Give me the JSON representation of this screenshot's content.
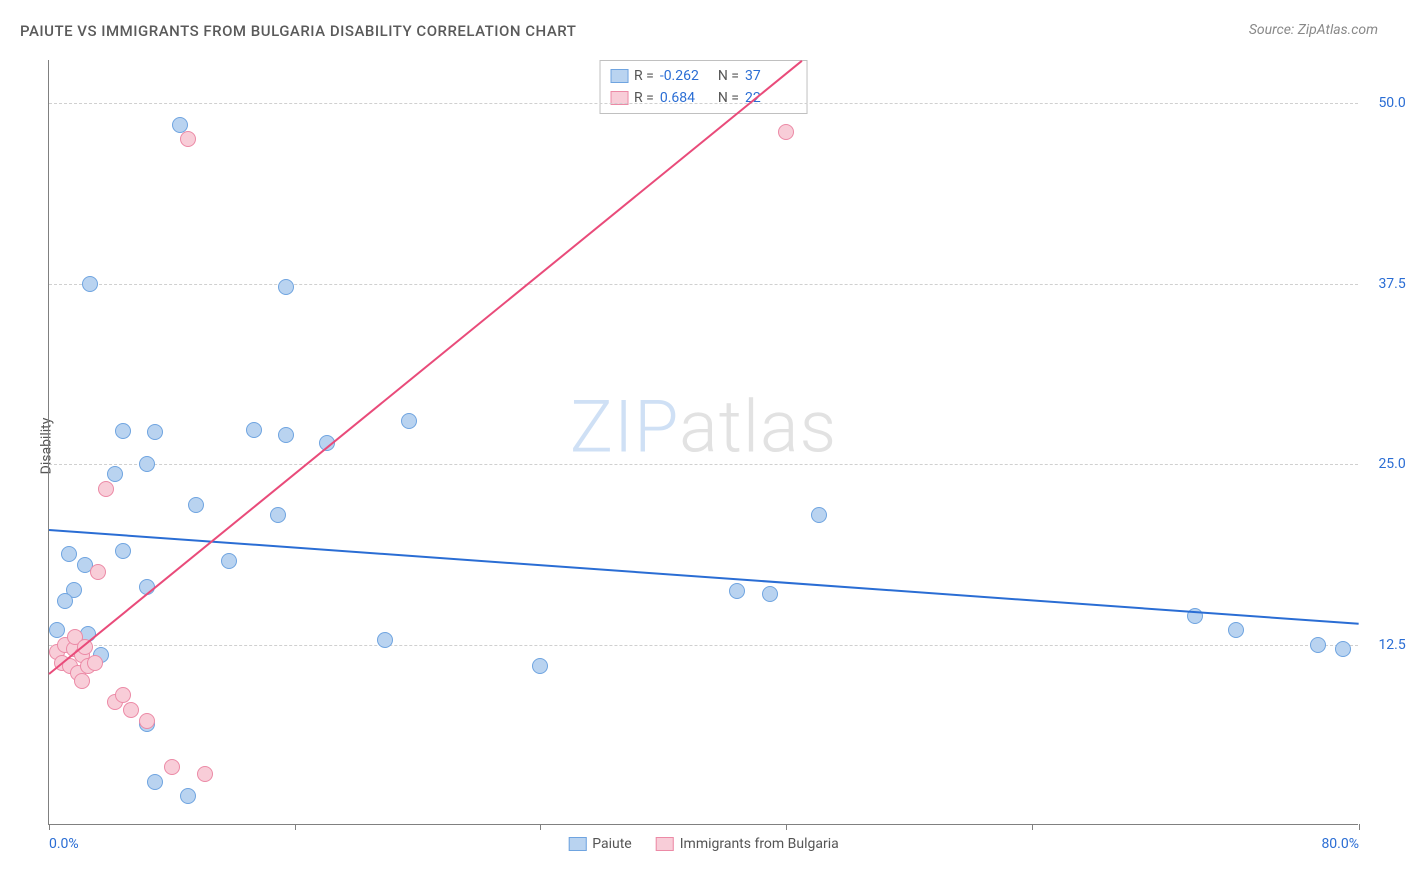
{
  "title": "PAIUTE VS IMMIGRANTS FROM BULGARIA DISABILITY CORRELATION CHART",
  "source": "Source: ZipAtlas.com",
  "y_axis_label": "Disability",
  "watermark_a": "ZIP",
  "watermark_b": "atlas",
  "chart": {
    "type": "scatter",
    "xlim": [
      0,
      80
    ],
    "ylim": [
      0,
      53
    ],
    "x_ticks": [
      0,
      15,
      30,
      45,
      60,
      80
    ],
    "x_tick_labels": {
      "0": "0.0%",
      "80": "80.0%"
    },
    "y_gridlines": [
      12.5,
      25,
      37.5,
      50
    ],
    "y_tick_labels": [
      "12.5%",
      "25.0%",
      "37.5%",
      "50.0%"
    ],
    "plot_bg": "#ffffff",
    "grid_color": "#d0d0d0",
    "axis_color": "#808080",
    "label_color": "#2a6dd4",
    "series": [
      {
        "name": "Paiute",
        "color_fill": "#b9d3f0",
        "color_stroke": "#6fa4e0",
        "trend_color": "#2a6dd4",
        "R": "-0.262",
        "N": "37",
        "trend": {
          "x1": 0,
          "y1": 20.5,
          "x2": 80,
          "y2": 14.0
        },
        "points": [
          [
            2.5,
            37.5
          ],
          [
            14.5,
            37.3
          ],
          [
            8,
            48.5
          ],
          [
            4.5,
            27.3
          ],
          [
            6.5,
            27.2
          ],
          [
            12.5,
            27.4
          ],
          [
            14.5,
            27.0
          ],
          [
            17,
            26.5
          ],
          [
            6,
            25.0
          ],
          [
            4,
            24.3
          ],
          [
            9,
            22.2
          ],
          [
            14,
            21.5
          ],
          [
            1.2,
            18.8
          ],
          [
            2.2,
            18.0
          ],
          [
            4.5,
            19.0
          ],
          [
            11,
            18.3
          ],
          [
            1.5,
            16.3
          ],
          [
            6,
            16.5
          ],
          [
            1.0,
            15.5
          ],
          [
            0.5,
            13.5
          ],
          [
            1.2,
            12.5
          ],
          [
            2.0,
            12.8
          ],
          [
            2.4,
            13.2
          ],
          [
            20.5,
            12.8
          ],
          [
            30,
            11.0
          ],
          [
            6,
            7.0
          ],
          [
            6.5,
            3.0
          ],
          [
            8.5,
            2.0
          ],
          [
            42,
            16.2
          ],
          [
            44,
            16.0
          ],
          [
            47,
            21.5
          ],
          [
            70,
            14.5
          ],
          [
            72.5,
            13.5
          ],
          [
            77.5,
            12.5
          ],
          [
            79,
            12.2
          ],
          [
            22,
            28.0
          ],
          [
            3.2,
            11.8
          ]
        ]
      },
      {
        "name": "Immigrants from Bulgaria",
        "color_fill": "#f8cdd8",
        "color_stroke": "#ec8aa6",
        "trend_color": "#e94b7a",
        "R": "0.684",
        "N": "22",
        "trend": {
          "x1": 0,
          "y1": 10.5,
          "x2": 46,
          "y2": 53
        },
        "points": [
          [
            0.5,
            12.0
          ],
          [
            0.8,
            11.2
          ],
          [
            1.0,
            12.5
          ],
          [
            1.3,
            11.0
          ],
          [
            1.5,
            12.2
          ],
          [
            1.6,
            13.0
          ],
          [
            1.8,
            10.5
          ],
          [
            2.0,
            11.8
          ],
          [
            2.2,
            12.3
          ],
          [
            2.4,
            11.0
          ],
          [
            2.0,
            10.0
          ],
          [
            2.8,
            11.2
          ],
          [
            3.0,
            17.5
          ],
          [
            3.5,
            23.3
          ],
          [
            4.0,
            8.5
          ],
          [
            4.5,
            9.0
          ],
          [
            5.0,
            8.0
          ],
          [
            6.0,
            7.2
          ],
          [
            7.5,
            4.0
          ],
          [
            9.5,
            3.5
          ],
          [
            8.5,
            47.5
          ],
          [
            45,
            48.0
          ]
        ]
      }
    ],
    "legend_bottom": [
      "Paiute",
      "Immigrants from Bulgaria"
    ]
  }
}
